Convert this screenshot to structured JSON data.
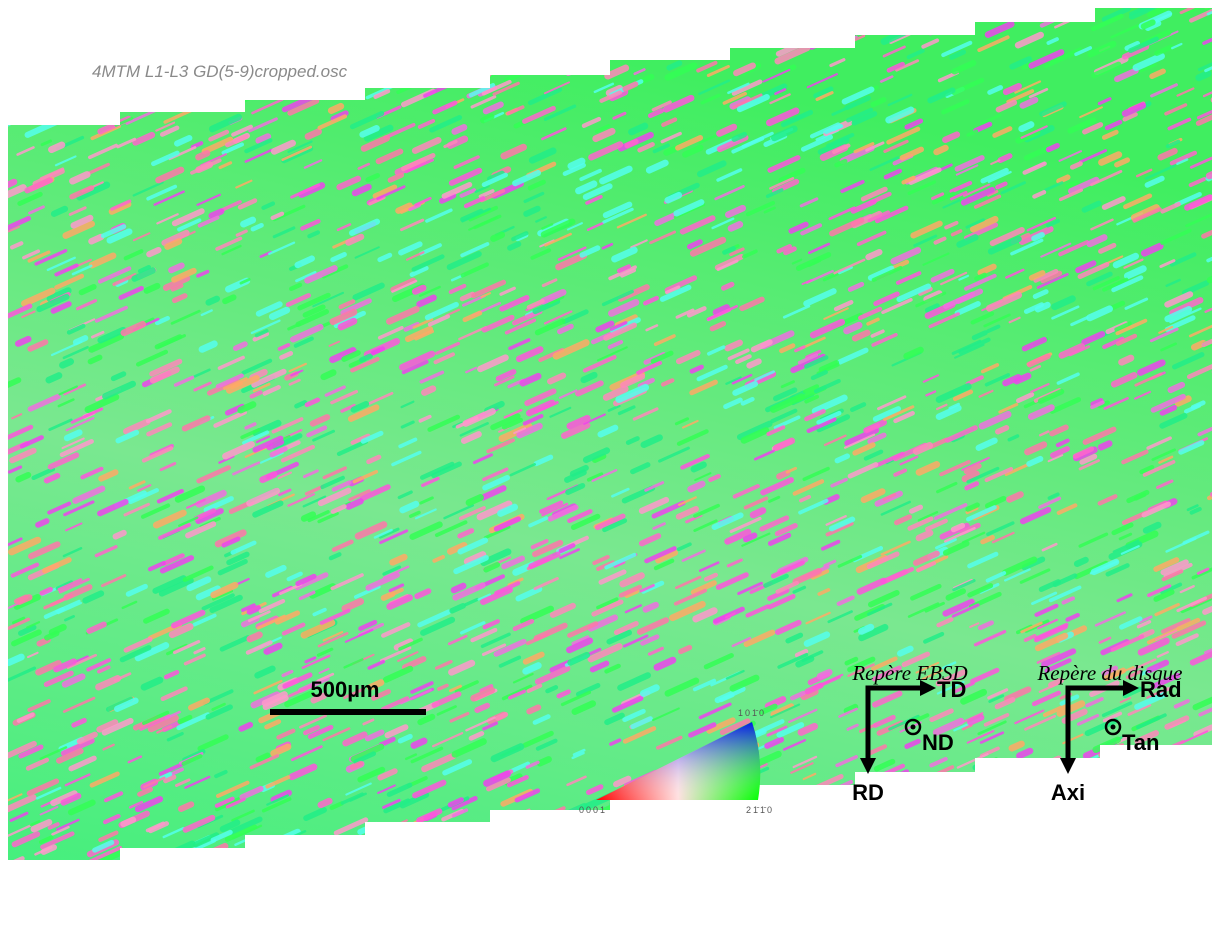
{
  "header": {
    "filename": "4MTM L1-L3 GD(5-9)cropped.osc"
  },
  "scale_bar": {
    "label": "500µm"
  },
  "ipf_key": {
    "top": "101̄0",
    "left": "0001",
    "right": "21̄1̄0"
  },
  "frames": [
    {
      "title": "Repère EBSD",
      "horizontal": "TD",
      "vertical": "RD",
      "normal": "ND"
    },
    {
      "title": "Repère du disque",
      "horizontal": "Rad",
      "vertical": "Axi",
      "normal": "Tan"
    }
  ]
}
